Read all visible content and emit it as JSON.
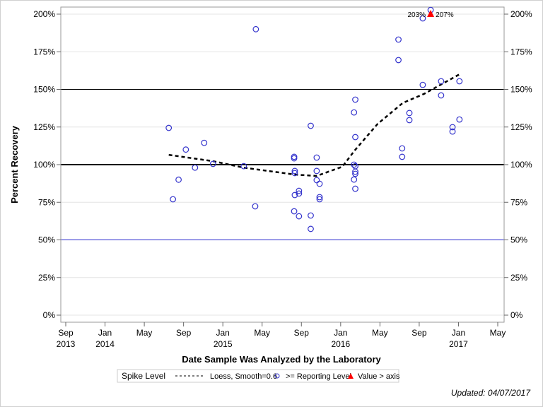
{
  "chart_data": {
    "type": "scatter",
    "title": "",
    "xlabel": "Date Sample Was Analyzed by the Laboratory",
    "ylabel": "Percent Recovery",
    "ylim": [
      0,
      200
    ],
    "xlim": [
      "2013-09-01",
      "2017-05-01"
    ],
    "y_ticks": [
      "0%",
      "25%",
      "50%",
      "75%",
      "100%",
      "125%",
      "150%",
      "175%",
      "200%"
    ],
    "x_ticks": [
      {
        "month": "Sep",
        "year": "2013",
        "date": "2013-09-01"
      },
      {
        "month": "Jan",
        "year": "2014",
        "date": "2014-01-01"
      },
      {
        "month": "May",
        "year": "",
        "date": "2014-05-01"
      },
      {
        "month": "Sep",
        "year": "",
        "date": "2014-09-01"
      },
      {
        "month": "Jan",
        "year": "2015",
        "date": "2015-01-01"
      },
      {
        "month": "May",
        "year": "",
        "date": "2015-05-01"
      },
      {
        "month": "Sep",
        "year": "",
        "date": "2015-09-01"
      },
      {
        "month": "Jan",
        "year": "2016",
        "date": "2016-01-01"
      },
      {
        "month": "May",
        "year": "",
        "date": "2016-05-01"
      },
      {
        "month": "Sep",
        "year": "",
        "date": "2016-09-01"
      },
      {
        "month": "Jan",
        "year": "2017",
        "date": "2017-01-01"
      },
      {
        "month": "May",
        "year": "",
        "date": "2017-05-01"
      }
    ],
    "grid": true,
    "reference_lines": [
      {
        "y": 150,
        "color": "#000000",
        "style": "thin"
      },
      {
        "y": 100,
        "color": "#000000",
        "style": "thick"
      },
      {
        "y": 50,
        "color": "#2222cc",
        "style": "thin"
      }
    ],
    "series": [
      {
        "name": ">= Reporting Level",
        "marker": "open-circle",
        "color": "#3333cc",
        "points": [
          [
            "2014-07-16",
            124.4
          ],
          [
            "2014-07-29",
            77
          ],
          [
            "2014-08-16",
            90
          ],
          [
            "2014-09-08",
            110
          ],
          [
            "2014-10-06",
            98
          ],
          [
            "2014-11-04",
            114.5
          ],
          [
            "2014-12-01",
            100.5
          ],
          [
            "2015-03-05",
            99
          ],
          [
            "2015-04-10",
            72.3
          ],
          [
            "2015-04-12",
            190
          ],
          [
            "2015-08-09",
            105.2
          ],
          [
            "2015-08-09",
            104.2
          ],
          [
            "2015-08-11",
            95.8
          ],
          [
            "2015-08-11",
            94.4
          ],
          [
            "2015-08-11",
            79.8
          ],
          [
            "2015-08-09",
            69
          ],
          [
            "2015-08-24",
            82.6
          ],
          [
            "2015-08-24",
            80.8
          ],
          [
            "2015-08-24",
            65.7
          ],
          [
            "2015-09-30",
            125.8
          ],
          [
            "2015-09-30",
            66.2
          ],
          [
            "2015-09-30",
            57.3
          ],
          [
            "2015-10-18",
            104.7
          ],
          [
            "2015-10-18",
            95.8
          ],
          [
            "2015-10-18",
            89.7
          ],
          [
            "2015-10-27",
            87.3
          ],
          [
            "2015-10-27",
            78.4
          ],
          [
            "2015-10-27",
            77
          ],
          [
            "2016-02-12",
            134.7
          ],
          [
            "2016-02-16",
            143.2
          ],
          [
            "2016-02-16",
            118.3
          ],
          [
            "2016-02-12",
            100
          ],
          [
            "2016-02-16",
            99
          ],
          [
            "2016-02-16",
            95.3
          ],
          [
            "2016-02-16",
            93.9
          ],
          [
            "2016-02-12",
            90.1
          ],
          [
            "2016-02-16",
            84
          ],
          [
            "2016-06-28",
            183.1
          ],
          [
            "2016-06-28",
            169.5
          ],
          [
            "2016-07-09",
            110.8
          ],
          [
            "2016-07-09",
            105.2
          ],
          [
            "2016-08-01",
            134.3
          ],
          [
            "2016-08-01",
            129.6
          ],
          [
            "2016-09-12",
            197.2
          ],
          [
            "2016-09-12",
            153
          ],
          [
            "2016-10-06",
            203
          ],
          [
            "2016-11-08",
            155.4
          ],
          [
            "2016-11-08",
            146
          ],
          [
            "2016-12-13",
            124.9
          ],
          [
            "2016-12-13",
            122
          ],
          [
            "2017-01-04",
            155.4
          ],
          [
            "2017-01-04",
            130
          ]
        ]
      },
      {
        "name": "Value > axis",
        "marker": "filled-triangle",
        "color": "#ff0000",
        "points": [
          [
            "2016-10-06",
            207
          ]
        ]
      },
      {
        "name": "Loess, Smooth=0.6",
        "marker": "dashed-line",
        "color": "#000000",
        "points": [
          [
            "2014-07-16",
            106.5
          ],
          [
            "2014-12-01",
            102.3
          ],
          [
            "2015-03-05",
            98
          ],
          [
            "2015-08-11",
            93.4
          ],
          [
            "2015-10-18",
            92.5
          ],
          [
            "2016-01-06",
            98.6
          ],
          [
            "2016-02-14",
            109.4
          ],
          [
            "2016-04-24",
            127
          ],
          [
            "2016-07-11",
            141
          ],
          [
            "2016-09-16",
            147
          ],
          [
            "2017-01-04",
            160
          ]
        ]
      }
    ],
    "annotations": [
      "203%",
      "207%"
    ],
    "legend": {
      "title": "Spike Level",
      "placement": "bottom"
    }
  },
  "footer": {
    "updated": "Updated: 04/07/2017"
  }
}
